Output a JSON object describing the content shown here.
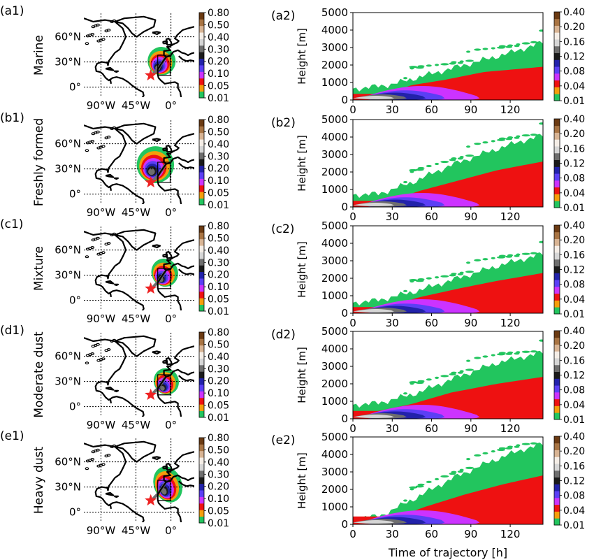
{
  "colors": {
    "levels": [
      "#22c55e",
      "#f59e0b",
      "#ee1111",
      "#cc33ff",
      "#5b3ff5",
      "#2222aa",
      "#1a1a1a",
      "#6e6e6e",
      "#d6d6d6",
      "#f4ede6",
      "#d8b494",
      "#a87443",
      "#6b3a12"
    ],
    "coast": "#000000",
    "star": "#ee2222"
  },
  "chart_data": [
    {
      "type": "heatmap",
      "panel": "(a1)",
      "row_label": "Marine",
      "x_ticks": [
        "90°W",
        "45°W",
        "0°"
      ],
      "y_ticks": [
        "0°",
        "30°N",
        "60°N"
      ],
      "colorbar_ticks": [
        "0.01",
        "0.05",
        "0.10",
        "0.20",
        "0.30",
        "0.40",
        "0.50",
        "0.80"
      ],
      "plume": {
        "lon": -12,
        "lat": 31,
        "rx": 18,
        "ry": 17,
        "tilt": -20
      },
      "marker": {
        "lon": -26,
        "lat": 14
      }
    },
    {
      "type": "heatmap",
      "panel": "(a2)",
      "xlabel": "",
      "ylabel": "Height [m]",
      "x_ticks": [
        "0",
        "30",
        "60",
        "90",
        "120"
      ],
      "y_ticks": [
        "0",
        "1000",
        "2000",
        "3000",
        "4000",
        "5000"
      ],
      "xlim": [
        0,
        145
      ],
      "ylim": [
        0,
        5000
      ],
      "colorbar_ticks": [
        "0.01",
        "0.04",
        "0.08",
        "0.12",
        "0.16",
        "0.20",
        "0.40"
      ],
      "top": [
        [
          0,
          650
        ],
        [
          10,
          700
        ],
        [
          30,
          900
        ],
        [
          60,
          1500
        ],
        [
          90,
          2100
        ],
        [
          120,
          2700
        ],
        [
          145,
          3300
        ]
      ],
      "red_top": [
        [
          25,
          350
        ],
        [
          45,
          850
        ],
        [
          70,
          1150
        ],
        [
          100,
          1600
        ],
        [
          145,
          1900
        ]
      ]
    },
    {
      "type": "heatmap",
      "panel": "(b1)",
      "row_label": "Freshly formed",
      "x_ticks": [
        "90°W",
        "45°W",
        "0°"
      ],
      "y_ticks": [
        "0°",
        "30°N",
        "60°N"
      ],
      "colorbar_ticks": [
        "0.01",
        "0.05",
        "0.10",
        "0.20",
        "0.30",
        "0.40",
        "0.50",
        "0.80"
      ],
      "plume": {
        "lon": -20,
        "lat": 35,
        "rx": 24,
        "ry": 22,
        "tilt": -15
      },
      "marker": {
        "lon": -26,
        "lat": 14
      }
    },
    {
      "type": "heatmap",
      "panel": "(b2)",
      "xlabel": "",
      "ylabel": "Height [m]",
      "x_ticks": [
        "0",
        "30",
        "60",
        "90",
        "120"
      ],
      "y_ticks": [
        "0",
        "1000",
        "2000",
        "3000",
        "4000",
        "5000"
      ],
      "xlim": [
        0,
        145
      ],
      "ylim": [
        0,
        5000
      ],
      "colorbar_ticks": [
        "0.01",
        "0.04",
        "0.08",
        "0.12",
        "0.16",
        "0.20",
        "0.40"
      ],
      "top": [
        [
          0,
          700
        ],
        [
          20,
          750
        ],
        [
          45,
          1400
        ],
        [
          75,
          2400
        ],
        [
          105,
          3200
        ],
        [
          130,
          3800
        ],
        [
          145,
          4100
        ]
      ],
      "red_top": [
        [
          30,
          350
        ],
        [
          50,
          900
        ],
        [
          80,
          1500
        ],
        [
          110,
          2100
        ],
        [
          145,
          2600
        ]
      ]
    },
    {
      "type": "heatmap",
      "panel": "(c1)",
      "row_label": "Mixture",
      "x_ticks": [
        "90°W",
        "45°W",
        "0°"
      ],
      "y_ticks": [
        "0°",
        "30°N",
        "60°N"
      ],
      "colorbar_ticks": [
        "0.01",
        "0.05",
        "0.10",
        "0.20",
        "0.30",
        "0.40",
        "0.50",
        "0.80"
      ],
      "plume": {
        "lon": -8,
        "lat": 33,
        "rx": 17,
        "ry": 17,
        "tilt": -25
      },
      "marker": {
        "lon": -26,
        "lat": 14
      }
    },
    {
      "type": "heatmap",
      "panel": "(c2)",
      "xlabel": "",
      "ylabel": "Height [m]",
      "x_ticks": [
        "0",
        "30",
        "60",
        "90",
        "120"
      ],
      "y_ticks": [
        "0",
        "1000",
        "2000",
        "3000",
        "4000",
        "5000"
      ],
      "xlim": [
        0,
        145
      ],
      "ylim": [
        0,
        5000
      ],
      "colorbar_ticks": [
        "0.01",
        "0.04",
        "0.08",
        "0.12",
        "0.16",
        "0.20",
        "0.40"
      ],
      "top": [
        [
          0,
          600
        ],
        [
          20,
          750
        ],
        [
          50,
          1300
        ],
        [
          80,
          2000
        ],
        [
          110,
          2700
        ],
        [
          145,
          3400
        ]
      ],
      "red_top": [
        [
          25,
          350
        ],
        [
          50,
          900
        ],
        [
          80,
          1400
        ],
        [
          110,
          1850
        ],
        [
          145,
          2300
        ]
      ]
    },
    {
      "type": "heatmap",
      "panel": "(d1)",
      "row_label": "Moderate dust",
      "x_ticks": [
        "90°W",
        "45°W",
        "0°"
      ],
      "y_ticks": [
        "0°",
        "30°N",
        "60°N"
      ],
      "colorbar_ticks": [
        "0.01",
        "0.05",
        "0.10",
        "0.20",
        "0.30",
        "0.40",
        "0.50",
        "0.80"
      ],
      "plume": {
        "lon": -6,
        "lat": 30,
        "rx": 16,
        "ry": 16,
        "tilt": -25
      },
      "marker": {
        "lon": -26,
        "lat": 14
      }
    },
    {
      "type": "heatmap",
      "panel": "(d2)",
      "xlabel": "",
      "ylabel": "Height [m]",
      "x_ticks": [
        "0",
        "30",
        "60",
        "90",
        "120"
      ],
      "y_ticks": [
        "0",
        "1000",
        "2000",
        "3000",
        "4000",
        "5000"
      ],
      "xlim": [
        0,
        145
      ],
      "ylim": [
        0,
        5000
      ],
      "colorbar_ticks": [
        "0.01",
        "0.04",
        "0.08",
        "0.12",
        "0.16",
        "0.20",
        "0.40"
      ],
      "top": [
        [
          0,
          800
        ],
        [
          20,
          900
        ],
        [
          50,
          1500
        ],
        [
          80,
          2400
        ],
        [
          110,
          3200
        ],
        [
          145,
          3800
        ]
      ],
      "red_top": [
        [
          20,
          450
        ],
        [
          45,
          850
        ],
        [
          75,
          1500
        ],
        [
          110,
          2000
        ],
        [
          145,
          2400
        ]
      ]
    },
    {
      "type": "heatmap",
      "panel": "(e1)",
      "row_label": "Heavy dust",
      "x_ticks": [
        "90°W",
        "45°W",
        "0°"
      ],
      "y_ticks": [
        "0°",
        "30°N",
        "60°N"
      ],
      "colorbar_ticks": [
        "0.01",
        "0.05",
        "0.10",
        "0.20",
        "0.30",
        "0.40",
        "0.50",
        "0.80"
      ],
      "plume": {
        "lon": -4,
        "lat": 33,
        "rx": 18,
        "ry": 22,
        "tilt": -20
      },
      "marker": {
        "lon": -26,
        "lat": 14
      }
    },
    {
      "type": "heatmap",
      "panel": "(e2)",
      "xlabel": "Time of trajectory [h]",
      "ylabel": "Height [m]",
      "x_ticks": [
        "0",
        "30",
        "60",
        "90",
        "120"
      ],
      "y_ticks": [
        "0",
        "1000",
        "2000",
        "3000",
        "4000",
        "5000"
      ],
      "xlim": [
        0,
        145
      ],
      "ylim": [
        0,
        5000
      ],
      "colorbar_ticks": [
        "0.01",
        "0.04",
        "0.08",
        "0.12",
        "0.16",
        "0.20",
        "0.40"
      ],
      "top": [
        [
          0,
          400
        ],
        [
          20,
          450
        ],
        [
          45,
          1400
        ],
        [
          75,
          2600
        ],
        [
          105,
          3600
        ],
        [
          130,
          4300
        ],
        [
          145,
          4600
        ]
      ],
      "red_top": [
        [
          35,
          450
        ],
        [
          55,
          1000
        ],
        [
          85,
          1700
        ],
        [
          115,
          2300
        ],
        [
          145,
          2800
        ]
      ]
    }
  ]
}
